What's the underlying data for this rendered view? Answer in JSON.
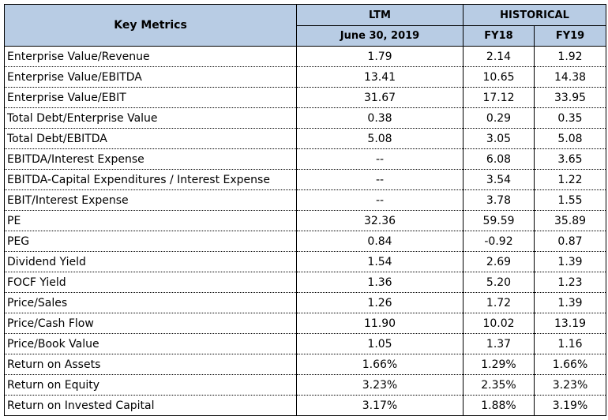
{
  "header": {
    "key_metrics": "Key Metrics",
    "ltm": "LTM",
    "historical": "HISTORICAL",
    "ltm_date": "June 30, 2019",
    "fy18": "FY18",
    "fy19": "FY19"
  },
  "rows": [
    {
      "label": "Enterprise Value/Revenue",
      "ltm": "1.79",
      "fy18": "2.14",
      "fy19": "1.92"
    },
    {
      "label": "Enterprise Value/EBITDA",
      "ltm": "13.41",
      "fy18": "10.65",
      "fy19": "14.38"
    },
    {
      "label": "Enterprise Value/EBIT",
      "ltm": "31.67",
      "fy18": "17.12",
      "fy19": "33.95"
    },
    {
      "label": "Total Debt/Enterprise Value",
      "ltm": "0.38",
      "fy18": "0.29",
      "fy19": "0.35"
    },
    {
      "label": "Total Debt/EBITDA",
      "ltm": "5.08",
      "fy18": "3.05",
      "fy19": "5.08"
    },
    {
      "label": "EBITDA/Interest Expense",
      "ltm": "--",
      "fy18": "6.08",
      "fy19": "3.65"
    },
    {
      "label": "EBITDA-Capital Expenditures / Interest Expense",
      "ltm": "--",
      "fy18": "3.54",
      "fy19": "1.22"
    },
    {
      "label": "EBIT/Interest Expense",
      "ltm": "--",
      "fy18": "3.78",
      "fy19": "1.55"
    },
    {
      "label": "PE",
      "ltm": "32.36",
      "fy18": "59.59",
      "fy19": "35.89"
    },
    {
      "label": "PEG",
      "ltm": "0.84",
      "fy18": "-0.92",
      "fy19": "0.87"
    },
    {
      "label": "Dividend Yield",
      "ltm": "1.54",
      "fy18": "2.69",
      "fy19": "1.39"
    },
    {
      "label": "FOCF Yield",
      "ltm": "1.36",
      "fy18": "5.20",
      "fy19": "1.23"
    },
    {
      "label": "Price/Sales",
      "ltm": "1.26",
      "fy18": "1.72",
      "fy19": "1.39"
    },
    {
      "label": "Price/Cash Flow",
      "ltm": "11.90",
      "fy18": "10.02",
      "fy19": "13.19"
    },
    {
      "label": "Price/Book Value",
      "ltm": "1.05",
      "fy18": "1.37",
      "fy19": "1.16"
    },
    {
      "label": "Return on Assets",
      "ltm": "1.66%",
      "fy18": "1.29%",
      "fy19": "1.66%"
    },
    {
      "label": "Return on Equity",
      "ltm": "3.23%",
      "fy18": "2.35%",
      "fy19": "3.23%"
    },
    {
      "label": "Return on Invested Capital",
      "ltm": "3.17%",
      "fy18": "1.88%",
      "fy19": "3.19%"
    }
  ]
}
